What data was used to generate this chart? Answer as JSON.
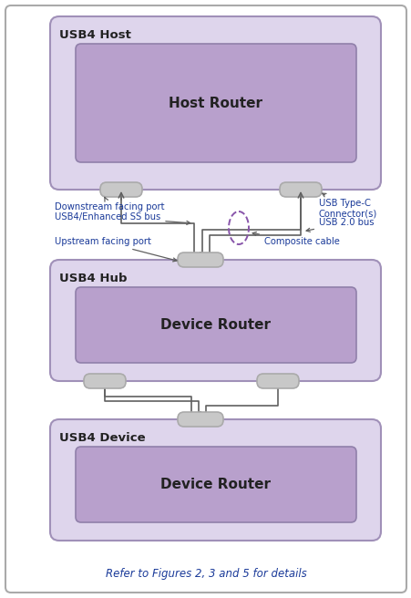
{
  "fig_width": 4.52,
  "fig_height": 6.56,
  "dpi": 100,
  "bg_color": "#ffffff",
  "outer_border_color": "#aaaaaa",
  "box_outer_fill": "#ded5ec",
  "box_outer_stroke": "#a090b8",
  "box_inner_fill": "#b8a0cc",
  "box_inner_stroke": "#9080aa",
  "connector_fill": "#c8c8c8",
  "connector_stroke": "#aaaaaa",
  "line_color": "#606060",
  "text_color_black": "#222222",
  "text_color_blue": "#1a3a99",
  "text_color_footer": "#1a3a99",
  "dashed_oval_color": "#8855aa",
  "footer_text": "Refer to Figures 2, 3 and 5 for details",
  "host_label": "USB4 Host",
  "host_router_label": "Host Router",
  "hub_label": "USB4 Hub",
  "hub_router_label": "Device Router",
  "device_label": "USB4 Device",
  "device_router_label": "Device Router",
  "ann_downstream": "Downstream facing port",
  "ann_usb4ss": "USB4/Enhanced SS bus",
  "ann_upstream": "Upstream facing port",
  "ann_typec": "USB Type-C\nConnector(s)",
  "ann_usb20": "USB 2.0 bus",
  "ann_composite": "Composite cable"
}
